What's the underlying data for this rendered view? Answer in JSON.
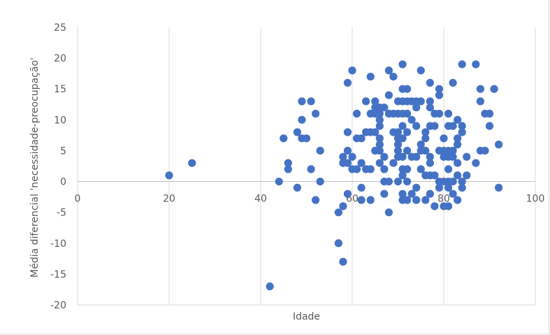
{
  "chart_data": {
    "type": "scatter",
    "title": "",
    "xlabel": "Idade",
    "ylabel": "Média diferencial 'necessidade-preocupação'",
    "xlim": [
      0,
      100
    ],
    "ylim": [
      -20,
      25
    ],
    "xticks": [
      0,
      20,
      40,
      60,
      80,
      100
    ],
    "yticks": [
      25,
      20,
      15,
      10,
      5,
      0,
      -5,
      -10,
      -15,
      -20
    ],
    "grid": "vertical",
    "legend": "none",
    "marker_color": "#4472C4",
    "points": [
      [
        20,
        1
      ],
      [
        25,
        3
      ],
      [
        42,
        -17
      ],
      [
        44,
        0
      ],
      [
        45,
        7
      ],
      [
        46,
        3
      ],
      [
        46,
        2
      ],
      [
        48,
        8
      ],
      [
        48,
        -1
      ],
      [
        49,
        13
      ],
      [
        49,
        10
      ],
      [
        49,
        7
      ],
      [
        50,
        7
      ],
      [
        51,
        13
      ],
      [
        51,
        2
      ],
      [
        52,
        11
      ],
      [
        52,
        -3
      ],
      [
        53,
        5
      ],
      [
        53,
        0
      ],
      [
        57,
        -5
      ],
      [
        57,
        -10
      ],
      [
        58,
        -13
      ],
      [
        58,
        -4
      ],
      [
        58,
        4
      ],
      [
        58,
        3
      ],
      [
        59,
        16
      ],
      [
        59,
        8
      ],
      [
        59,
        5
      ],
      [
        59,
        3
      ],
      [
        59,
        -2
      ],
      [
        60,
        18
      ],
      [
        60,
        4
      ],
      [
        60,
        2
      ],
      [
        61,
        11
      ],
      [
        61,
        7
      ],
      [
        61,
        2
      ],
      [
        62,
        7
      ],
      [
        62,
        3
      ],
      [
        62,
        -1
      ],
      [
        62,
        -3
      ],
      [
        63,
        13
      ],
      [
        63,
        8
      ],
      [
        63,
        2
      ],
      [
        64,
        17
      ],
      [
        64,
        11
      ],
      [
        64,
        8
      ],
      [
        64,
        2
      ],
      [
        64,
        -3
      ],
      [
        65,
        13
      ],
      [
        65,
        12
      ],
      [
        65,
        11
      ],
      [
        65,
        8
      ],
      [
        65,
        5
      ],
      [
        66,
        12
      ],
      [
        66,
        11
      ],
      [
        66,
        10
      ],
      [
        66,
        9
      ],
      [
        66,
        7
      ],
      [
        66,
        6
      ],
      [
        66,
        5
      ],
      [
        66,
        3
      ],
      [
        67,
        12
      ],
      [
        67,
        4
      ],
      [
        67,
        2
      ],
      [
        67,
        0
      ],
      [
        67,
        -2
      ],
      [
        68,
        18
      ],
      [
        68,
        14
      ],
      [
        68,
        11
      ],
      [
        68,
        0
      ],
      [
        68,
        -5
      ],
      [
        69,
        17
      ],
      [
        69,
        11
      ],
      [
        69,
        8
      ],
      [
        69,
        3
      ],
      [
        70,
        13
      ],
      [
        70,
        11
      ],
      [
        70,
        8
      ],
      [
        70,
        7
      ],
      [
        70,
        6
      ],
      [
        70,
        5
      ],
      [
        70,
        4
      ],
      [
        70,
        0
      ],
      [
        71,
        19
      ],
      [
        71,
        15
      ],
      [
        71,
        13
      ],
      [
        71,
        11
      ],
      [
        71,
        9
      ],
      [
        71,
        7
      ],
      [
        71,
        4
      ],
      [
        71,
        2
      ],
      [
        71,
        1
      ],
      [
        71,
        -2
      ],
      [
        71,
        -3
      ],
      [
        72,
        15
      ],
      [
        72,
        13
      ],
      [
        72,
        11
      ],
      [
        72,
        8
      ],
      [
        72,
        5
      ],
      [
        72,
        2
      ],
      [
        72,
        0
      ],
      [
        72,
        -3
      ],
      [
        73,
        13
      ],
      [
        73,
        10
      ],
      [
        73,
        4
      ],
      [
        73,
        -2
      ],
      [
        74,
        13
      ],
      [
        74,
        12
      ],
      [
        74,
        9
      ],
      [
        74,
        4
      ],
      [
        74,
        -1
      ],
      [
        74,
        -3
      ],
      [
        75,
        18
      ],
      [
        75,
        13
      ],
      [
        75,
        6
      ],
      [
        75,
        5
      ],
      [
        75,
        2
      ],
      [
        76,
        8
      ],
      [
        76,
        7
      ],
      [
        76,
        5
      ],
      [
        76,
        1
      ],
      [
        76,
        -3
      ],
      [
        77,
        16
      ],
      [
        77,
        13
      ],
      [
        77,
        12
      ],
      [
        77,
        9
      ],
      [
        77,
        4
      ],
      [
        77,
        3
      ],
      [
        77,
        1
      ],
      [
        77,
        -2
      ],
      [
        78,
        11
      ],
      [
        78,
        9
      ],
      [
        78,
        1
      ],
      [
        78,
        -4
      ],
      [
        79,
        15
      ],
      [
        79,
        14
      ],
      [
        79,
        11
      ],
      [
        79,
        5
      ],
      [
        79,
        0
      ],
      [
        79,
        -1
      ],
      [
        80,
        7
      ],
      [
        80,
        5
      ],
      [
        80,
        4
      ],
      [
        80,
        0
      ],
      [
        80,
        -4
      ],
      [
        81,
        11
      ],
      [
        81,
        9
      ],
      [
        81,
        5
      ],
      [
        81,
        4
      ],
      [
        81,
        2
      ],
      [
        81,
        0
      ],
      [
        81,
        -1
      ],
      [
        81,
        -4
      ],
      [
        82,
        16
      ],
      [
        82,
        9
      ],
      [
        82,
        5
      ],
      [
        82,
        4
      ],
      [
        82,
        0
      ],
      [
        82,
        -2
      ],
      [
        83,
        10
      ],
      [
        83,
        7
      ],
      [
        83,
        6
      ],
      [
        83,
        3
      ],
      [
        83,
        1
      ],
      [
        83,
        -3
      ],
      [
        84,
        19
      ],
      [
        84,
        9
      ],
      [
        84,
        8
      ],
      [
        84,
        0
      ],
      [
        84,
        -1
      ],
      [
        85,
        4
      ],
      [
        85,
        1
      ],
      [
        87,
        19
      ],
      [
        87,
        3
      ],
      [
        88,
        15
      ],
      [
        88,
        13
      ],
      [
        88,
        5
      ],
      [
        89,
        11
      ],
      [
        89,
        5
      ],
      [
        90,
        11
      ],
      [
        90,
        9
      ],
      [
        91,
        15
      ],
      [
        92,
        6
      ],
      [
        92,
        -1
      ]
    ]
  }
}
